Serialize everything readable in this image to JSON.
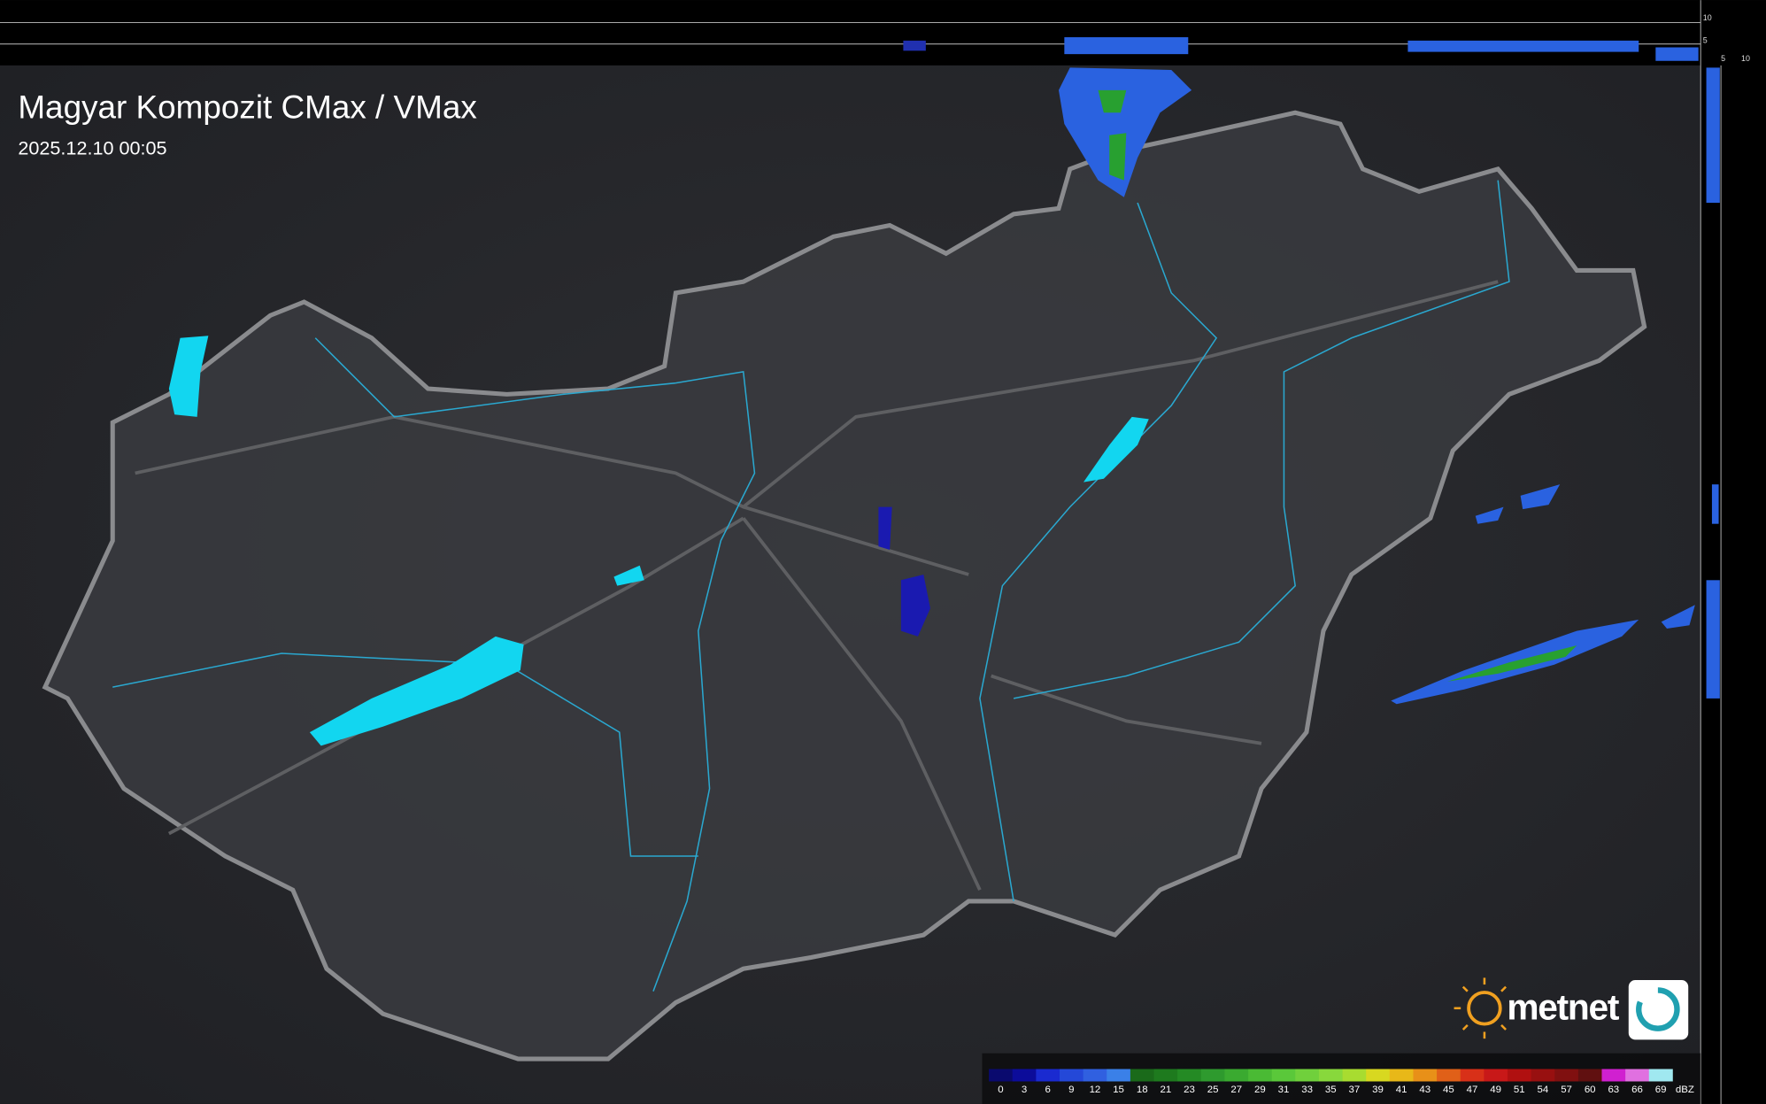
{
  "header": {
    "title": "Magyar Kompozit CMax / VMax",
    "timestamp": "2025.12.10 00:05"
  },
  "profile_axis": {
    "top_ticks": [
      10,
      5
    ],
    "side_ticks": [
      5,
      10
    ]
  },
  "brand": "metnet",
  "legend": {
    "unit": "dBZ",
    "items": [
      {
        "label": 0,
        "color": "#0a0a6e"
      },
      {
        "label": 3,
        "color": "#0c0c9a"
      },
      {
        "label": 6,
        "color": "#1a2ad0"
      },
      {
        "label": 9,
        "color": "#2448d8"
      },
      {
        "label": 12,
        "color": "#3060e0"
      },
      {
        "label": 15,
        "color": "#3a80e8"
      },
      {
        "label": 18,
        "color": "#1a6a1a"
      },
      {
        "label": 21,
        "color": "#1e7a1e"
      },
      {
        "label": 23,
        "color": "#248a24"
      },
      {
        "label": 25,
        "color": "#2e9a2e"
      },
      {
        "label": 27,
        "color": "#3aaa30"
      },
      {
        "label": 29,
        "color": "#4aba34"
      },
      {
        "label": 31,
        "color": "#5ac83a"
      },
      {
        "label": 33,
        "color": "#70d03c"
      },
      {
        "label": 35,
        "color": "#88d83c"
      },
      {
        "label": 37,
        "color": "#a8dc30"
      },
      {
        "label": 39,
        "color": "#d8d820"
      },
      {
        "label": 41,
        "color": "#e8b818"
      },
      {
        "label": 43,
        "color": "#e89018"
      },
      {
        "label": 45,
        "color": "#e06018"
      },
      {
        "label": 47,
        "color": "#d83018"
      },
      {
        "label": 49,
        "color": "#c81818"
      },
      {
        "label": 51,
        "color": "#b01010"
      },
      {
        "label": 54,
        "color": "#981010"
      },
      {
        "label": 57,
        "color": "#801010"
      },
      {
        "label": 60,
        "color": "#601010"
      },
      {
        "label": 63,
        "color": "#d020d0"
      },
      {
        "label": 66,
        "color": "#e070e0"
      },
      {
        "label": 69,
        "color": "#a0e8f0"
      }
    ]
  }
}
